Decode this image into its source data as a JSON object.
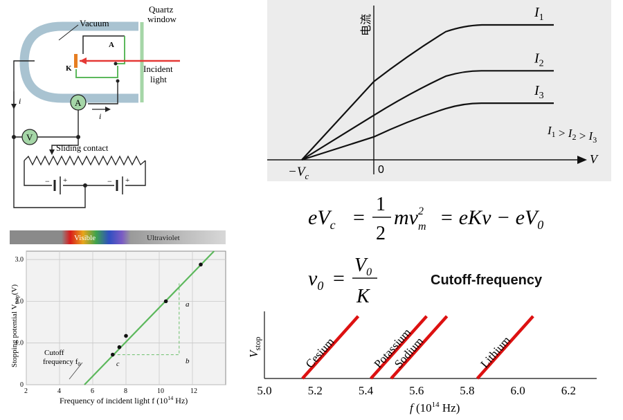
{
  "apparatus": {
    "vacuum": "Vacuum",
    "quartz_window": [
      "Quartz",
      "window"
    ],
    "anode": "A",
    "cathode": "K",
    "incident_light": [
      "Incident",
      "light"
    ],
    "current_i": "i",
    "ammeter": "A",
    "voltmeter": "V",
    "sliding_contact": "Sliding contact",
    "battery_signs": [
      "−",
      "+",
      "−",
      "+"
    ],
    "colors": {
      "tube": "#a9c3d1",
      "light": "#e53935",
      "meter_fill": "#a5d6a7",
      "cathode": "#e67e22"
    }
  },
  "iv_chart": {
    "ylabel": "电流",
    "xlabel": "V",
    "origin_label": "0",
    "vc_label": "−V",
    "vc_sub": "c",
    "inequality": "I1 > I2 > I3",
    "colors": {
      "background": "#ececec"
    }
  },
  "stopping_chart": {
    "spectrum": {
      "visible": "Visible",
      "ultraviolet": "Ultraviolet"
    },
    "ylabel": "Stopping potential V",
    "ylabel_sub": "stop",
    "ylabel_unit": "(V)",
    "xlabel": "Frequency of incident light f (10",
    "xlabel_sup": "14",
    "xlabel_end": " Hz)",
    "annotations": {
      "a": "a",
      "b": "b",
      "c": "c"
    },
    "cutoff_label": [
      "Cutoff",
      "frequency f"
    ],
    "cutoff_sub": "0",
    "colors": {
      "line": "#5cb85c",
      "background": "#f2f2f2"
    }
  },
  "equations": {
    "eq1": {
      "lhs": "eV",
      "lhs_sub": "c",
      "half_num": "1",
      "half_den": "2",
      "mv": "mv",
      "mv_sup": "2",
      "mv_sub": "m",
      "rhs": "= eKν − eV",
      "rhs_sub": "0"
    },
    "eq2": {
      "lhs": "ν",
      "lhs_sub": "0",
      "num": "V",
      "num_sub": "0",
      "den": "K"
    },
    "cutoff_text": "Cutoff-frequency"
  },
  "chart_data": [
    {
      "type": "line",
      "title": "",
      "xlabel": "V",
      "ylabel": "电流",
      "series": [
        {
          "name": "I1",
          "x": [
            -1.0,
            0.0,
            1.0,
            1.5,
            2.5
          ],
          "y": [
            0.0,
            0.58,
            0.95,
            1.0,
            1.0
          ]
        },
        {
          "name": "I2",
          "x": [
            -1.0,
            0.0,
            1.0,
            1.5,
            2.5
          ],
          "y": [
            0.0,
            0.33,
            0.62,
            0.66,
            0.66
          ]
        },
        {
          "name": "I3",
          "x": [
            -1.0,
            0.0,
            1.0,
            1.5,
            2.5
          ],
          "y": [
            0.0,
            0.17,
            0.38,
            0.42,
            0.42
          ]
        }
      ],
      "x_ticks": [
        "−Vc",
        "0"
      ]
    },
    {
      "type": "scatter",
      "title": "",
      "xlabel": "Frequency of incident light f (10^14 Hz)",
      "ylabel": "Stopping potential Vstop (V)",
      "xlim": [
        2,
        14
      ],
      "ylim": [
        0,
        3.2
      ],
      "x_ticks": [
        2,
        4,
        6,
        8,
        10,
        12
      ],
      "y_ticks": [
        0,
        1.0,
        2.0,
        3.0
      ],
      "points": [
        {
          "x": 7.2,
          "y": 0.72
        },
        {
          "x": 7.6,
          "y": 0.9
        },
        {
          "x": 8.0,
          "y": 1.17
        },
        {
          "x": 10.4,
          "y": 2.0
        },
        {
          "x": 12.5,
          "y": 2.88
        }
      ],
      "fit_line": {
        "x": [
          5.5,
          13.3
        ],
        "y": [
          0.0,
          3.2
        ]
      },
      "cutoff_frequency": 5.5
    },
    {
      "type": "line",
      "title": "",
      "xlabel": "f (10^14 Hz)",
      "ylabel": "Vstop",
      "xlim": [
        5.0,
        6.3
      ],
      "x_ticks": [
        5.0,
        5.2,
        5.4,
        5.6,
        5.8,
        6.0,
        6.2
      ],
      "series": [
        {
          "name": "Cesium",
          "x": [
            5.15,
            5.37
          ],
          "y": [
            0,
            1
          ]
        },
        {
          "name": "Potassium",
          "x": [
            5.42,
            5.64
          ],
          "y": [
            0,
            1
          ]
        },
        {
          "name": "Sodium",
          "x": [
            5.5,
            5.72
          ],
          "y": [
            0,
            1
          ]
        },
        {
          "name": "Lithium",
          "x": [
            5.84,
            6.06
          ],
          "y": [
            0,
            1
          ]
        }
      ],
      "colors": {
        "lines": "#dd1111"
      }
    }
  ]
}
